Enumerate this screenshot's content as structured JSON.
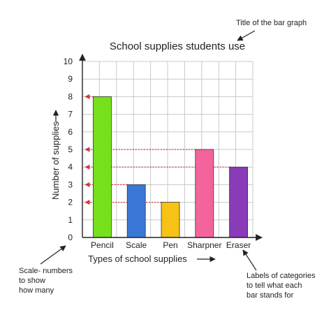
{
  "annotations": {
    "title_note": "Title of the bar graph",
    "scale_note": [
      "Scale- numbers",
      "to show",
      "how many"
    ],
    "category_note": [
      "Labels of categories",
      "to tell what each",
      "bar stands for"
    ]
  },
  "chart_data": {
    "type": "bar",
    "title": "School supplies students use",
    "xlabel": "Types of school supplies",
    "ylabel": "Number of supplies",
    "categories": [
      "Pencil",
      "Scale",
      "Pen",
      "Sharpner",
      "Eraser"
    ],
    "values": [
      8,
      3,
      2,
      5,
      4
    ],
    "colors": [
      "#77e01c",
      "#3a78d8",
      "#f5c215",
      "#f4649c",
      "#8a3bb8"
    ],
    "ylim": [
      0,
      10
    ],
    "yticks": [
      "0",
      "1",
      "2",
      "3",
      "4",
      "5",
      "6",
      "7",
      "8",
      "9",
      "10"
    ],
    "grid": true,
    "reference_lines_color": "#d9343a"
  }
}
